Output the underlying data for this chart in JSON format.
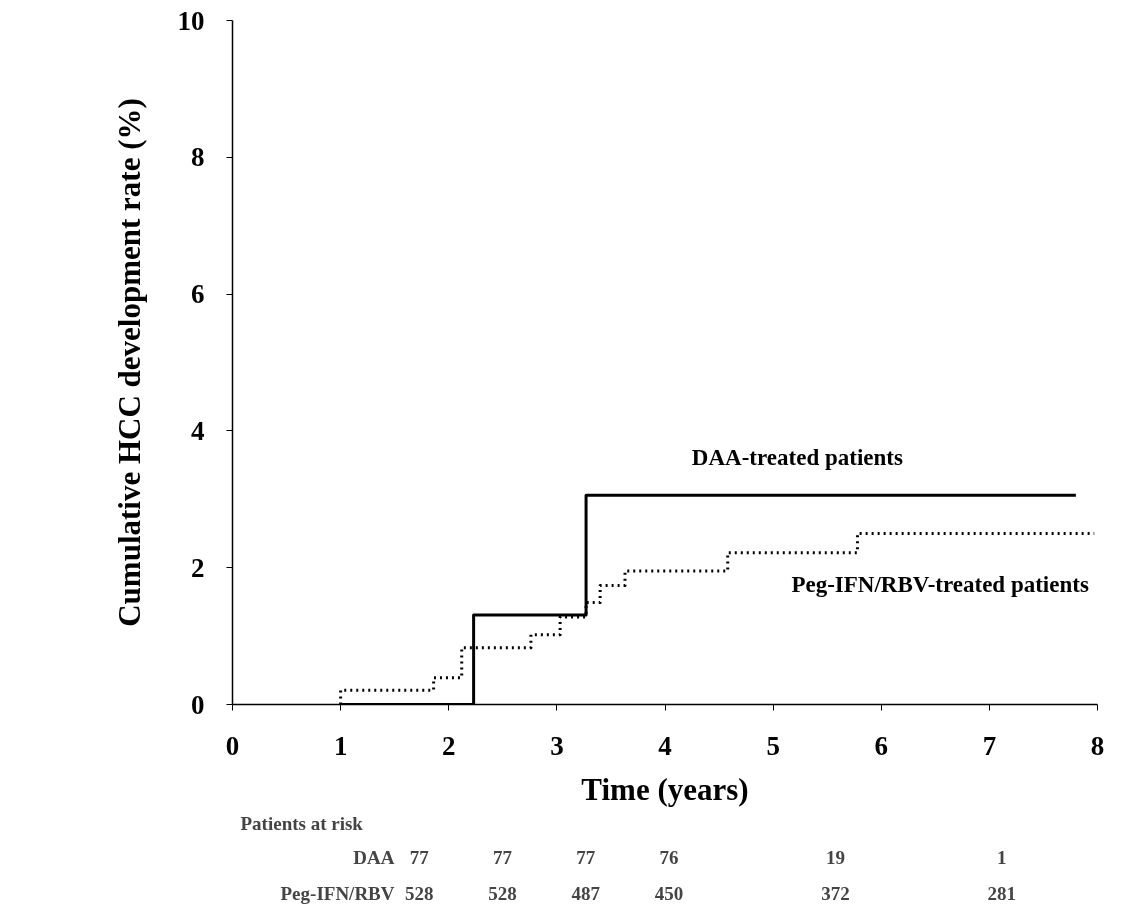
{
  "chart_data": {
    "type": "step",
    "xlabel": "Time (years)",
    "ylabel": "Cumulative HCC development rate (%)",
    "xlim": [
      0,
      8
    ],
    "ylim": [
      0,
      10
    ],
    "xticks": [
      0,
      1,
      2,
      3,
      4,
      5,
      6,
      7,
      8
    ],
    "yticks": [
      0,
      2,
      4,
      6,
      8,
      10
    ],
    "grid": false,
    "series": [
      {
        "name": "DAA-treated patients",
        "color": "#000000",
        "line_style": "solid",
        "x": [
          1.0,
          2.23,
          3.27,
          7.8
        ],
        "values": [
          0,
          1.31,
          3.06,
          3.06
        ]
      },
      {
        "name": "Peg-IFN/RBV-treated patients",
        "color": "#000000",
        "line_style": "dotted",
        "x": [
          1.0,
          1.0,
          1.86,
          2.12,
          2.76,
          3.03,
          3.27,
          3.4,
          3.63,
          4.58,
          5.78,
          7.97
        ],
        "values": [
          0,
          0.21,
          0.39,
          0.83,
          1.02,
          1.28,
          1.49,
          1.74,
          1.95,
          2.22,
          2.5,
          2.5
        ]
      }
    ],
    "annotations": [
      "Patients at risk",
      "DAA",
      "77",
      "77",
      "77",
      "76",
      "19",
      "1",
      "Peg-IFN/RBV",
      "528",
      "528",
      "487",
      "450",
      "372",
      "281"
    ]
  }
}
